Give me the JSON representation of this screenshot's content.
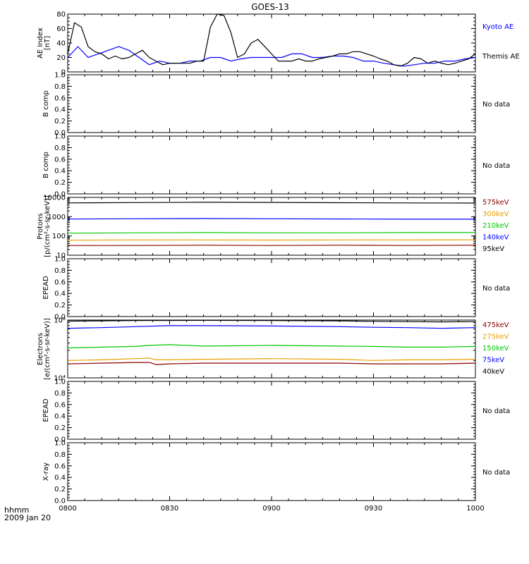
{
  "title": "GOES-13",
  "time_label": "hhmm",
  "date_label": "2009 Jan 20",
  "x_ticks": [
    "0800",
    "0830",
    "0900",
    "0930",
    "1000"
  ],
  "colors": {
    "kyoto_ae": "#0000ff",
    "themis_ae": "#000000",
    "p575": "#8b0000",
    "p300": "#e8a000",
    "p210": "#00c800",
    "p140": "#0000ff",
    "p95": "#000000",
    "e475": "#8b0000",
    "e275": "#e8a000",
    "e150": "#00c800",
    "e75": "#0000ff",
    "e40": "#000000"
  },
  "chart_data": [
    {
      "type": "line",
      "panel": "ae",
      "ylabel_lines": [
        "AE Index",
        "[nT]"
      ],
      "ylim": [
        0,
        80
      ],
      "yticks": [
        "0",
        "20",
        "40",
        "60",
        "80"
      ],
      "x_range": [
        0,
        120
      ],
      "series": [
        {
          "name": "Kyoto AE",
          "color_key": "kyoto_ae",
          "x": [
            0,
            3,
            6,
            9,
            12,
            15,
            18,
            21,
            24,
            27,
            30,
            33,
            36,
            39,
            42,
            45,
            48,
            51,
            54,
            57,
            60,
            63,
            66,
            69,
            72,
            75,
            78,
            81,
            84,
            87,
            90,
            93,
            96,
            99,
            102,
            105,
            108,
            111,
            114,
            117,
            120
          ],
          "y": [
            20,
            35,
            20,
            25,
            30,
            35,
            30,
            20,
            10,
            15,
            12,
            12,
            15,
            15,
            20,
            20,
            15,
            18,
            20,
            20,
            20,
            20,
            25,
            25,
            20,
            20,
            22,
            22,
            20,
            15,
            15,
            12,
            10,
            8,
            10,
            12,
            12,
            15,
            15,
            18,
            20
          ]
        },
        {
          "name": "Themis AE",
          "color_key": "themis_ae",
          "x": [
            0,
            2,
            4,
            6,
            8,
            10,
            12,
            14,
            16,
            18,
            20,
            22,
            24,
            26,
            28,
            30,
            32,
            34,
            36,
            38,
            40,
            42,
            44,
            46,
            48,
            50,
            52,
            54,
            56,
            58,
            60,
            62,
            64,
            66,
            68,
            70,
            72,
            74,
            76,
            78,
            80,
            82,
            84,
            86,
            88,
            90,
            92,
            94,
            96,
            98,
            100,
            102,
            104,
            106,
            108,
            110,
            112,
            114,
            116,
            118,
            120
          ],
          "y": [
            25,
            68,
            62,
            35,
            28,
            25,
            18,
            22,
            18,
            20,
            25,
            30,
            20,
            15,
            10,
            12,
            12,
            12,
            12,
            15,
            15,
            62,
            80,
            78,
            55,
            20,
            25,
            40,
            45,
            35,
            25,
            15,
            15,
            15,
            18,
            15,
            15,
            18,
            20,
            22,
            25,
            25,
            28,
            28,
            25,
            22,
            18,
            15,
            10,
            8,
            12,
            20,
            18,
            12,
            15,
            12,
            10,
            12,
            15,
            18,
            25
          ]
        }
      ],
      "legend": [
        {
          "label": "Kyoto AE",
          "color_key": "kyoto_ae"
        },
        {
          "label": "Themis AE",
          "color_key": "themis_ae"
        }
      ]
    },
    {
      "type": "line",
      "panel": "b-comp-1",
      "ylabel_lines": [
        "B comp"
      ],
      "ylim": [
        0,
        1
      ],
      "yticks": [
        "0.0",
        "0.2",
        "0.4",
        "0.6",
        "0.8",
        "1.0"
      ],
      "note": "No data"
    },
    {
      "type": "line",
      "panel": "b-comp-2",
      "ylabel_lines": [
        "B comp"
      ],
      "ylim": [
        0,
        1
      ],
      "yticks": [
        "0.0",
        "0.2",
        "0.4",
        "0.6",
        "0.8",
        "1.0"
      ],
      "note": "No data"
    },
    {
      "type": "line",
      "panel": "protons",
      "ylabel_lines": [
        "Protons",
        "[p/(cm²-s-sr-keV)]"
      ],
      "ylog": true,
      "ylim": [
        10,
        10000
      ],
      "yticks": [
        "10",
        "100",
        "1000",
        "10000"
      ],
      "x_range": [
        0,
        120
      ],
      "series": [
        {
          "name": "575keV",
          "color_key": "p575",
          "x": [
            0,
            20,
            40,
            60,
            80,
            100,
            120
          ],
          "y": [
            32,
            32,
            33,
            32,
            33,
            32,
            33
          ]
        },
        {
          "name": "300keV",
          "color_key": "p300",
          "x": [
            0,
            20,
            40,
            60,
            80,
            100,
            120
          ],
          "y": [
            60,
            62,
            62,
            61,
            62,
            62,
            63
          ]
        },
        {
          "name": "210keV",
          "color_key": "p210",
          "x": [
            0,
            20,
            40,
            60,
            80,
            100,
            120
          ],
          "y": [
            140,
            145,
            150,
            145,
            145,
            150,
            150
          ]
        },
        {
          "name": "140keV",
          "color_key": "p140",
          "x": [
            0,
            20,
            40,
            60,
            80,
            100,
            120
          ],
          "y": [
            750,
            780,
            800,
            780,
            760,
            740,
            740
          ]
        },
        {
          "name": "95keV",
          "color_key": "p95",
          "x": [
            0,
            20,
            40,
            60,
            80,
            100,
            120
          ],
          "y": [
            5200,
            5400,
            5600,
            5500,
            5300,
            5200,
            5100
          ]
        }
      ],
      "legend": [
        {
          "label": "575keV",
          "color_key": "p575"
        },
        {
          "label": "300keV",
          "color_key": "p300"
        },
        {
          "label": "210keV",
          "color_key": "p210"
        },
        {
          "label": "140keV",
          "color_key": "p140"
        },
        {
          "label": "95keV",
          "color_key": "p95"
        }
      ]
    },
    {
      "type": "line",
      "panel": "epead-1",
      "ylabel_lines": [
        "EPEAD"
      ],
      "ylim": [
        0,
        1
      ],
      "yticks": [
        "0.0",
        "0.2",
        "0.4",
        "0.6",
        "0.8",
        "1.0"
      ],
      "note": "No data"
    },
    {
      "type": "line",
      "panel": "electrons",
      "ylabel_lines": [
        "Electrons",
        "[e/(cm²-s-sr-keV)]"
      ],
      "ylog": true,
      "ylim": [
        10000,
        100000
      ],
      "yticks": [
        "10⁴",
        "10⁵"
      ],
      "x_range": [
        0,
        120
      ],
      "series": [
        {
          "name": "475keV",
          "color_key": "e475",
          "x": [
            0,
            10,
            20,
            24,
            26,
            30,
            40,
            60,
            80,
            90,
            100,
            110,
            120
          ],
          "y": [
            17500,
            18000,
            18500,
            18500,
            17000,
            17500,
            18000,
            18000,
            18000,
            17500,
            17500,
            17500,
            18000
          ]
        },
        {
          "name": "275keV",
          "color_key": "e275",
          "x": [
            0,
            10,
            20,
            24,
            26,
            30,
            40,
            60,
            80,
            90,
            100,
            110,
            120
          ],
          "y": [
            20000,
            20500,
            21500,
            22000,
            20500,
            20500,
            21000,
            21500,
            21000,
            20000,
            20500,
            20500,
            21000
          ]
        },
        {
          "name": "150keV",
          "color_key": "e150",
          "x": [
            0,
            10,
            20,
            24,
            30,
            40,
            60,
            80,
            90,
            100,
            110,
            120
          ],
          "y": [
            33000,
            34000,
            35000,
            36500,
            37500,
            35500,
            36500,
            35500,
            35000,
            34000,
            34000,
            35000
          ]
        },
        {
          "name": "75keV",
          "color_key": "e75",
          "x": [
            0,
            10,
            20,
            30,
            40,
            60,
            80,
            90,
            100,
            110,
            120
          ],
          "y": [
            72000,
            74000,
            77000,
            80000,
            80000,
            79000,
            77000,
            75000,
            74000,
            72000,
            74000
          ]
        },
        {
          "name": "40keV",
          "color_key": "e40",
          "x": [
            0,
            10,
            20,
            40,
            60,
            80,
            90,
            100,
            110,
            120
          ],
          "y": [
            96000,
            97000,
            98000,
            99000,
            98000,
            97000,
            95000,
            94000,
            93000,
            94000
          ]
        }
      ],
      "legend": [
        {
          "label": "475keV",
          "color_key": "e475"
        },
        {
          "label": "275keV",
          "color_key": "e275"
        },
        {
          "label": "150keV",
          "color_key": "e150"
        },
        {
          "label": "75keV",
          "color_key": "e75"
        },
        {
          "label": "40keV",
          "color_key": "e40"
        }
      ]
    },
    {
      "type": "line",
      "panel": "epead-2",
      "ylabel_lines": [
        "EPEAD"
      ],
      "ylim": [
        0,
        1
      ],
      "yticks": [
        "0.0",
        "0.2",
        "0.4",
        "0.6",
        "0.8",
        "1.0"
      ],
      "note": "No data"
    },
    {
      "type": "line",
      "panel": "x-ray",
      "ylabel_lines": [
        "X-ray"
      ],
      "ylim": [
        0,
        1
      ],
      "yticks": [
        "0.0",
        "0.2",
        "0.4",
        "0.6",
        "0.8",
        "1.0"
      ],
      "note": "No data"
    }
  ]
}
